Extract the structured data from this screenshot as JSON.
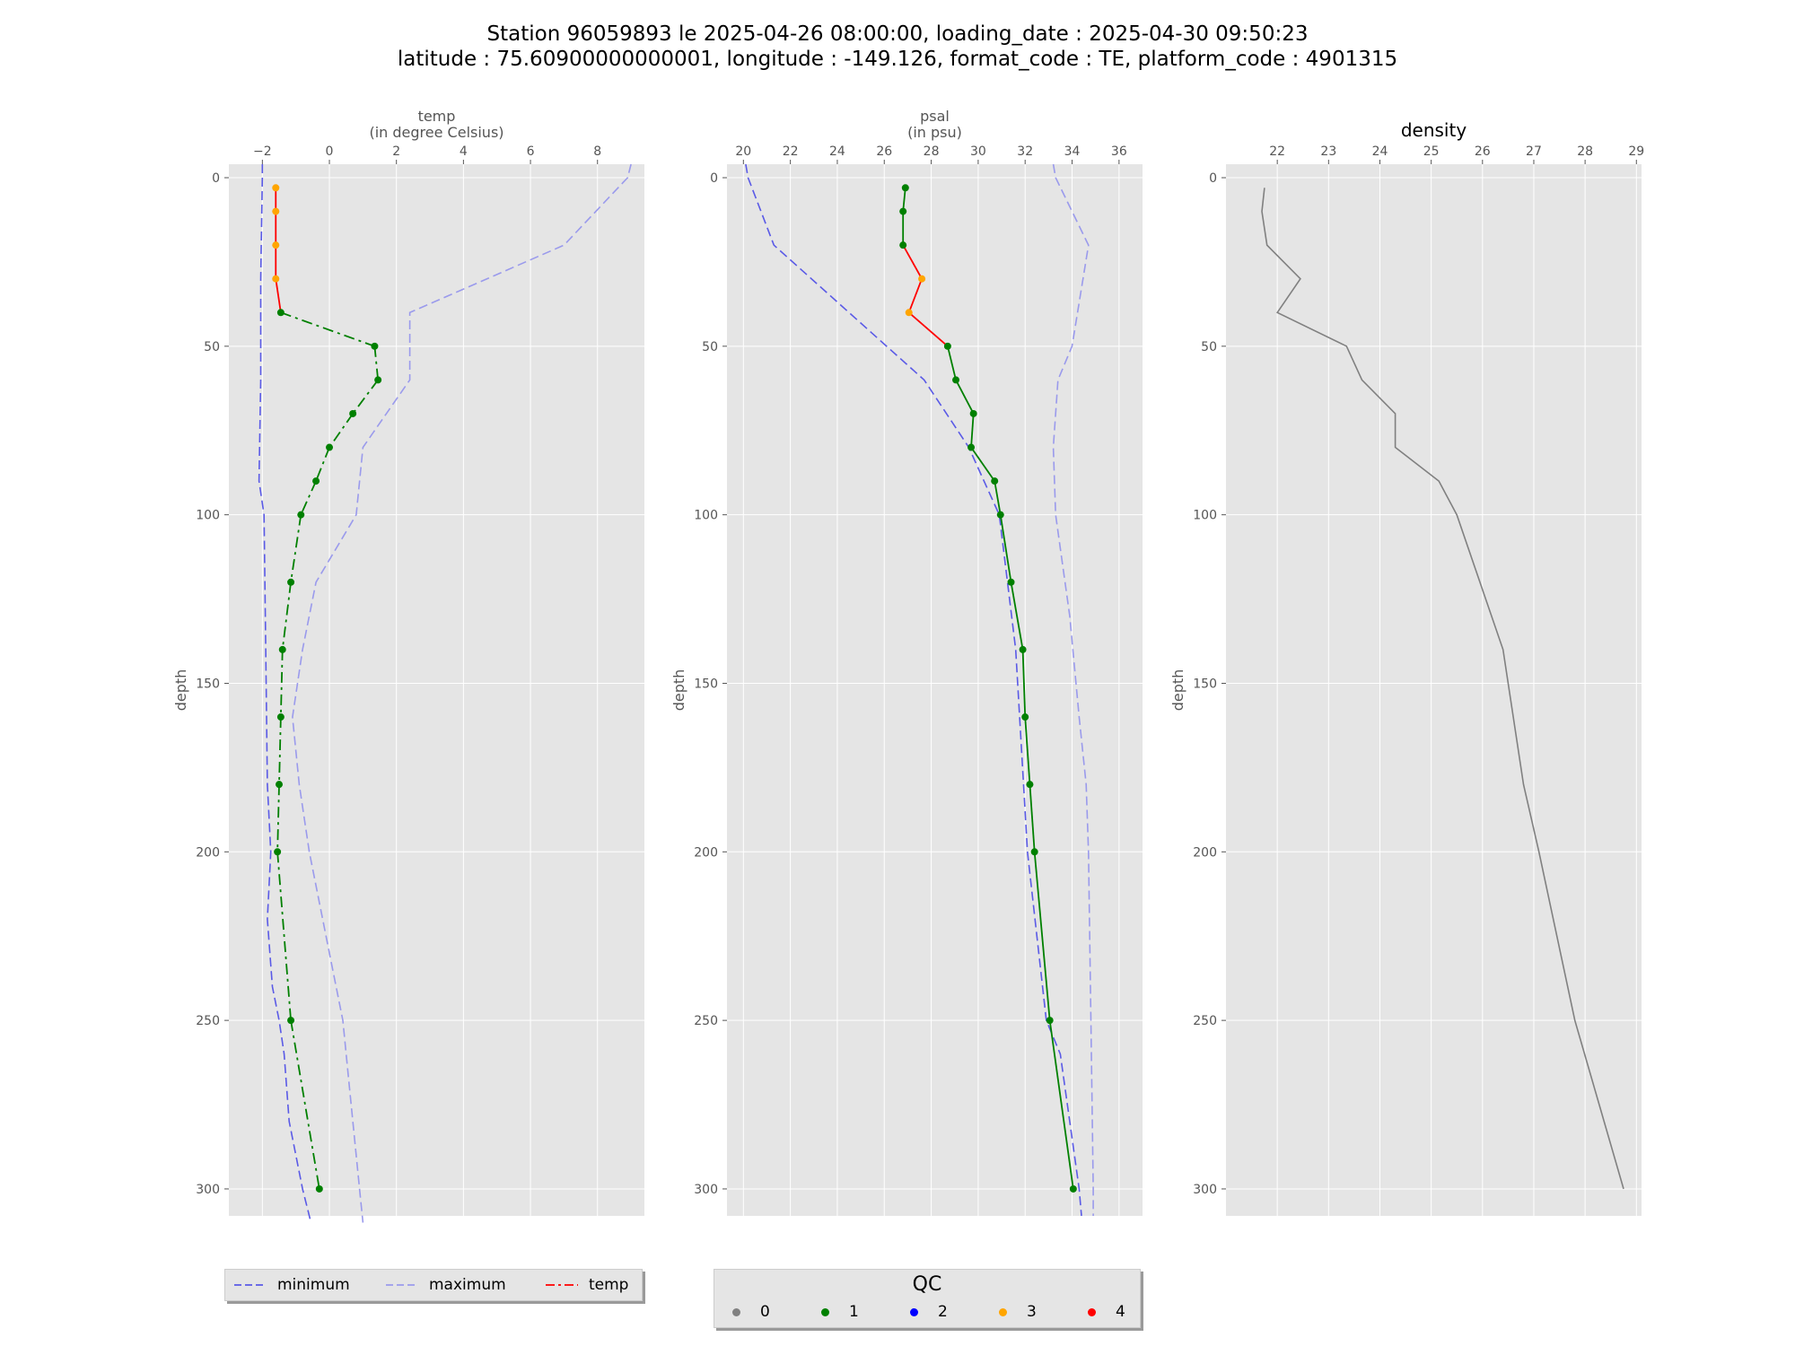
{
  "title": {
    "line1": "Station 96059893 le 2025-04-26 08:00:00, loading_date : 2025-04-30 09:50:23",
    "line2": "latitude : 75.60900000000001, longitude : -149.126, format_code : TE, platform_code : 4901315"
  },
  "colors": {
    "minimum": "#5a5ae6",
    "maximum": "#9a9aec",
    "profile_temp": "#008000",
    "profile_temp_bad": "#ff0000",
    "density": "#808080",
    "background": "#e5e5e5",
    "grid": "#ffffff",
    "qc": {
      "0": "#808080",
      "1": "#008000",
      "2": "#0000ff",
      "3": "#ffa500",
      "4": "#ff0000"
    }
  },
  "chart_data": [
    {
      "type": "line",
      "panel": "temp",
      "title": "temp\n(in degree Celsius)",
      "ylabel": "depth",
      "xlim": [
        -3.0,
        9.4
      ],
      "ylim": [
        308,
        -4
      ],
      "xticks": [
        -2,
        0,
        2,
        4,
        6,
        8
      ],
      "yticks": [
        0,
        50,
        100,
        150,
        200,
        250,
        300
      ],
      "x_axis_position": "top",
      "grid": true,
      "series": [
        {
          "name": "minimum",
          "style": "dashed",
          "points": [
            [
              -2.0,
              -4
            ],
            [
              -2.0,
              0
            ],
            [
              -2.05,
              30
            ],
            [
              -2.05,
              60
            ],
            [
              -2.1,
              90
            ],
            [
              -1.95,
              100
            ],
            [
              -1.9,
              140
            ],
            [
              -1.85,
              180
            ],
            [
              -1.75,
              200
            ],
            [
              -1.8,
              210
            ],
            [
              -1.85,
              220
            ],
            [
              -1.7,
              240
            ],
            [
              -1.5,
              250
            ],
            [
              -1.35,
              260
            ],
            [
              -1.2,
              280
            ],
            [
              -0.8,
              300
            ],
            [
              -0.55,
              310
            ]
          ]
        },
        {
          "name": "maximum",
          "style": "dashed",
          "points": [
            [
              9.0,
              -4
            ],
            [
              8.9,
              0
            ],
            [
              7.0,
              20
            ],
            [
              2.4,
              40
            ],
            [
              2.4,
              60
            ],
            [
              1.0,
              80
            ],
            [
              0.8,
              100
            ],
            [
              -0.4,
              120
            ],
            [
              -0.8,
              140
            ],
            [
              -1.1,
              160
            ],
            [
              -0.9,
              180
            ],
            [
              -0.6,
              200
            ],
            [
              0.0,
              230
            ],
            [
              0.4,
              250
            ],
            [
              0.6,
              270
            ],
            [
              0.9,
              300
            ],
            [
              1.0,
              310
            ]
          ]
        },
        {
          "name": "temp",
          "style": "dashdot",
          "qc_colored": true,
          "points": [
            [
              -1.6,
              3,
              3
            ],
            [
              -1.6,
              10,
              3
            ],
            [
              -1.6,
              20,
              3
            ],
            [
              -1.6,
              30,
              3
            ],
            [
              -1.45,
              40,
              1
            ],
            [
              1.35,
              50,
              1
            ],
            [
              1.45,
              60,
              1
            ],
            [
              0.7,
              70,
              1
            ],
            [
              0.0,
              80,
              1
            ],
            [
              -0.4,
              90,
              1
            ],
            [
              -0.85,
              100,
              1
            ],
            [
              -1.15,
              120,
              1
            ],
            [
              -1.4,
              140,
              1
            ],
            [
              -1.45,
              160,
              1
            ],
            [
              -1.5,
              180,
              1
            ],
            [
              -1.55,
              200,
              1
            ],
            [
              -1.15,
              250,
              1
            ],
            [
              -0.3,
              300,
              1
            ]
          ]
        }
      ]
    },
    {
      "type": "line",
      "panel": "psal",
      "title": "psal\n(in psu)",
      "ylabel": "depth",
      "xlim": [
        19.3,
        37.0
      ],
      "ylim": [
        308,
        -4
      ],
      "xticks": [
        20,
        22,
        24,
        26,
        28,
        30,
        32,
        34,
        36
      ],
      "yticks": [
        0,
        50,
        100,
        150,
        200,
        250,
        300
      ],
      "x_axis_position": "top",
      "grid": true,
      "series": [
        {
          "name": "minimum",
          "style": "dashed",
          "points": [
            [
              20.1,
              -4
            ],
            [
              20.2,
              0
            ],
            [
              21.3,
              20
            ],
            [
              27.7,
              60
            ],
            [
              29.6,
              80
            ],
            [
              30.9,
              100
            ],
            [
              31.6,
              140
            ],
            [
              32.1,
              200
            ],
            [
              32.9,
              250
            ],
            [
              33.5,
              260
            ],
            [
              33.9,
              280
            ],
            [
              34.3,
              300
            ],
            [
              34.4,
              308
            ]
          ]
        },
        {
          "name": "maximum",
          "style": "dashed",
          "points": [
            [
              33.2,
              -4
            ],
            [
              33.3,
              0
            ],
            [
              34.7,
              20
            ],
            [
              34.0,
              50
            ],
            [
              33.4,
              60
            ],
            [
              33.2,
              80
            ],
            [
              33.3,
              100
            ],
            [
              33.9,
              130
            ],
            [
              34.3,
              160
            ],
            [
              34.6,
              180
            ],
            [
              34.7,
              200
            ],
            [
              34.8,
              250
            ],
            [
              34.9,
              300
            ],
            [
              34.9,
              308
            ]
          ]
        },
        {
          "name": "psal",
          "style": "solid",
          "qc_colored": true,
          "points": [
            [
              26.9,
              3,
              1
            ],
            [
              26.8,
              10,
              1
            ],
            [
              26.8,
              20,
              1
            ],
            [
              27.6,
              30,
              3
            ],
            [
              27.05,
              40,
              3
            ],
            [
              28.7,
              50,
              1
            ],
            [
              29.05,
              60,
              1
            ],
            [
              29.8,
              70,
              1
            ],
            [
              29.7,
              80,
              1
            ],
            [
              30.7,
              90,
              1
            ],
            [
              30.95,
              100,
              1
            ],
            [
              31.4,
              120,
              1
            ],
            [
              31.9,
              140,
              1
            ],
            [
              32.0,
              160,
              1
            ],
            [
              32.2,
              180,
              1
            ],
            [
              32.4,
              200,
              1
            ],
            [
              33.05,
              250,
              1
            ],
            [
              34.05,
              300,
              1
            ]
          ]
        }
      ]
    },
    {
      "type": "line",
      "panel": "density",
      "title": "density",
      "ylabel": "depth",
      "xlim": [
        21.0,
        29.1
      ],
      "ylim": [
        308,
        -4
      ],
      "xticks": [
        22,
        23,
        24,
        25,
        26,
        27,
        28,
        29
      ],
      "yticks": [
        0,
        50,
        100,
        150,
        200,
        250,
        300
      ],
      "x_axis_position": "top",
      "grid": true,
      "series": [
        {
          "name": "density",
          "style": "solid",
          "points": [
            [
              21.75,
              3
            ],
            [
              21.7,
              10
            ],
            [
              21.8,
              20
            ],
            [
              22.45,
              30
            ],
            [
              22.0,
              40
            ],
            [
              23.35,
              50
            ],
            [
              23.65,
              60
            ],
            [
              24.3,
              70
            ],
            [
              24.3,
              80
            ],
            [
              25.15,
              90
            ],
            [
              25.5,
              100
            ],
            [
              26.4,
              140
            ],
            [
              26.8,
              180
            ],
            [
              27.1,
              200
            ],
            [
              27.8,
              250
            ],
            [
              28.75,
              300
            ]
          ]
        }
      ]
    }
  ],
  "legend_lines": [
    {
      "label": "minimum",
      "style": "dashed",
      "color": "#5a5ae6"
    },
    {
      "label": "maximum",
      "style": "dashed",
      "color": "#9a9aec"
    },
    {
      "label": "temp",
      "style": "dashdot",
      "color": "#ff0000"
    }
  ],
  "legend_qc": {
    "title": "QC",
    "items": [
      {
        "label": "0",
        "color": "#808080"
      },
      {
        "label": "1",
        "color": "#008000"
      },
      {
        "label": "2",
        "color": "#0000ff"
      },
      {
        "label": "3",
        "color": "#ffa500"
      },
      {
        "label": "4",
        "color": "#ff0000"
      }
    ]
  }
}
